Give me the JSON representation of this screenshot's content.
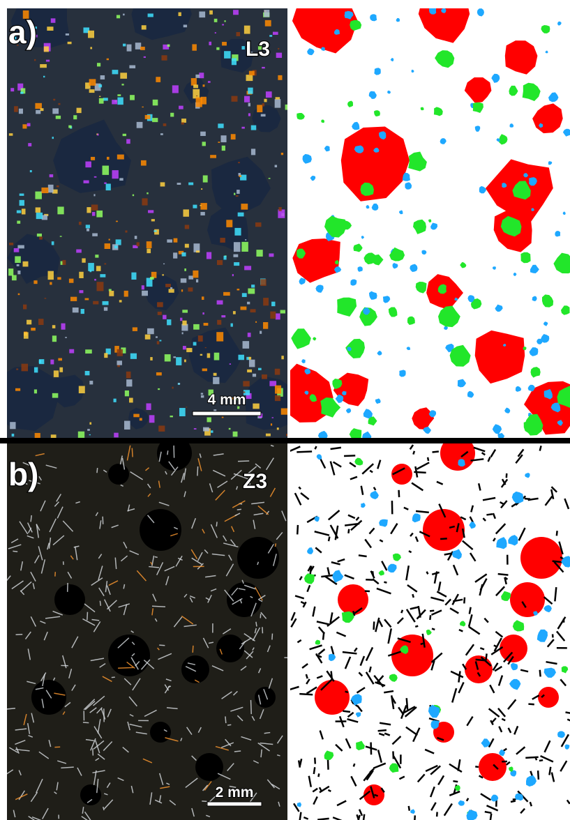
{
  "panels": [
    {
      "label": "a)",
      "sample": "L3",
      "scale_bar": "4 mm"
    },
    {
      "label": "b)",
      "sample": "Z3",
      "scale_bar": "2 mm"
    }
  ]
}
